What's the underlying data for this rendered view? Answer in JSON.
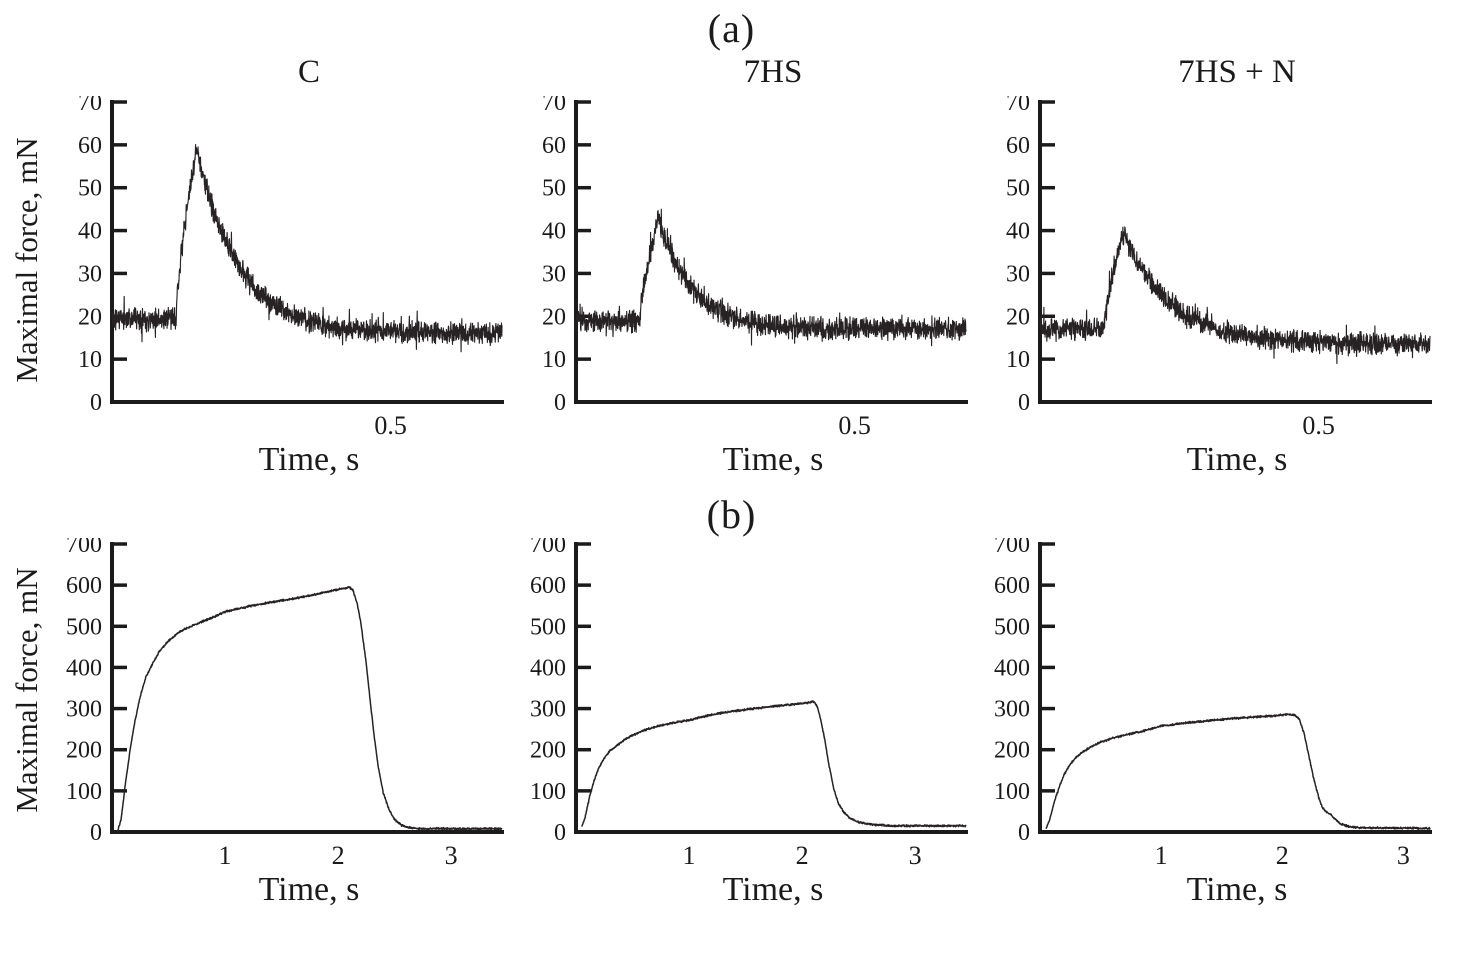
{
  "figure": {
    "section_a_label": "(a)",
    "section_b_label": "(b)",
    "y_axis_title": "Maximal force, mN",
    "x_axis_title": "Time, s"
  },
  "chart_data": [
    {
      "type": "line",
      "row": "a",
      "title": "C",
      "xlabel": "Time, s",
      "ylabel": "Maximal force, mN",
      "xlim": [
        0,
        0.7
      ],
      "ylim": [
        0,
        70
      ],
      "yticks": [
        0,
        10,
        20,
        30,
        40,
        50,
        60,
        70
      ],
      "ytick_labels": [
        "0",
        "10",
        "20",
        "30",
        "40",
        "50",
        "60",
        "70"
      ],
      "xticks": [
        0.5
      ],
      "xtick_labels": [
        "0.5"
      ],
      "grid": false,
      "legend": null,
      "line_color": "#272324",
      "axis_color": "#1b1b1b",
      "trace": {
        "kind": "twitch",
        "seed": 11,
        "samples": 1600,
        "baseline_start_mN": 19.5,
        "baseline_end_mN": 16,
        "stim_time_s": 0.115,
        "peak_time_s": 0.152,
        "peak_mN": 59,
        "decay_tau_s": 0.075,
        "noise_mN": 3.0
      }
    },
    {
      "type": "line",
      "row": "a",
      "title": "7HS",
      "xlabel": "Time, s",
      "ylabel": "Maximal force, mN",
      "xlim": [
        0,
        0.7
      ],
      "ylim": [
        0,
        70
      ],
      "yticks": [
        0,
        10,
        20,
        30,
        40,
        50,
        60,
        70
      ],
      "ytick_labels": [
        "0",
        "10",
        "20",
        "30",
        "40",
        "50",
        "60",
        "70"
      ],
      "xticks": [
        0.5
      ],
      "xtick_labels": [
        "0.5"
      ],
      "grid": false,
      "legend": null,
      "line_color": "#272324",
      "axis_color": "#1b1b1b",
      "trace": {
        "kind": "twitch",
        "seed": 23,
        "samples": 1600,
        "baseline_start_mN": 19,
        "baseline_end_mN": 17,
        "stim_time_s": 0.115,
        "peak_time_s": 0.148,
        "peak_mN": 42.5,
        "decay_tau_s": 0.062,
        "noise_mN": 3.0
      }
    },
    {
      "type": "line",
      "row": "a",
      "title": "7HS + N",
      "xlabel": "Time, s",
      "ylabel": "Maximal force, mN",
      "xlim": [
        0,
        0.7
      ],
      "ylim": [
        0,
        70
      ],
      "yticks": [
        0,
        10,
        20,
        30,
        40,
        50,
        60,
        70
      ],
      "ytick_labels": [
        "0",
        "10",
        "20",
        "30",
        "40",
        "50",
        "60",
        "70"
      ],
      "xticks": [
        0.5
      ],
      "xtick_labels": [
        "0.5"
      ],
      "grid": false,
      "legend": null,
      "line_color": "#272324",
      "axis_color": "#1b1b1b",
      "trace": {
        "kind": "twitch",
        "seed": 37,
        "samples": 1600,
        "baseline_start_mN": 17,
        "baseline_end_mN": 13.5,
        "stim_time_s": 0.115,
        "peak_time_s": 0.15,
        "peak_mN": 39.5,
        "decay_tau_s": 0.085,
        "noise_mN": 3.0
      }
    },
    {
      "type": "line",
      "row": "b",
      "title": "",
      "xlabel": "Time, s",
      "ylabel": "Maximal force, mN",
      "xlim": [
        0,
        3.45
      ],
      "ylim": [
        0,
        700
      ],
      "yticks": [
        0,
        100,
        200,
        300,
        400,
        500,
        600,
        700
      ],
      "ytick_labels": [
        "0",
        "100",
        "200",
        "300",
        "400",
        "500",
        "600",
        "700"
      ],
      "xticks": [
        1,
        2,
        3
      ],
      "xtick_labels": [
        "1",
        "2",
        "3"
      ],
      "grid": false,
      "legend": null,
      "line_color": "#272324",
      "axis_color": "#1b1b1b",
      "trace": {
        "kind": "tetanus",
        "seed": 51,
        "samples": 1300,
        "noise_mN": 2.8,
        "plateau_mN": 595,
        "keypoints": [
          [
            0.05,
            2
          ],
          [
            0.08,
            30
          ],
          [
            0.12,
            120
          ],
          [
            0.16,
            200
          ],
          [
            0.2,
            265
          ],
          [
            0.25,
            330
          ],
          [
            0.3,
            377
          ],
          [
            0.36,
            410
          ],
          [
            0.42,
            440
          ],
          [
            0.5,
            464
          ],
          [
            0.6,
            487
          ],
          [
            0.72,
            503
          ],
          [
            0.85,
            517
          ],
          [
            1.0,
            535
          ],
          [
            1.2,
            548
          ],
          [
            1.4,
            558
          ],
          [
            1.6,
            567
          ],
          [
            1.8,
            577
          ],
          [
            1.95,
            587
          ],
          [
            2.05,
            592
          ],
          [
            2.1,
            595
          ],
          [
            2.13,
            588
          ],
          [
            2.17,
            555
          ],
          [
            2.2,
            510
          ],
          [
            2.24,
            430
          ],
          [
            2.28,
            330
          ],
          [
            2.32,
            230
          ],
          [
            2.36,
            150
          ],
          [
            2.4,
            95
          ],
          [
            2.45,
            55
          ],
          [
            2.5,
            30
          ],
          [
            2.56,
            17
          ],
          [
            2.62,
            11
          ],
          [
            2.7,
            8
          ],
          [
            3.45,
            8
          ]
        ]
      }
    },
    {
      "type": "line",
      "row": "b",
      "title": "",
      "xlabel": "Time, s",
      "ylabel": "Maximal force, mN",
      "xlim": [
        0,
        3.45
      ],
      "ylim": [
        0,
        700
      ],
      "yticks": [
        0,
        100,
        200,
        300,
        400,
        500,
        600,
        700
      ],
      "ytick_labels": [
        "0",
        "100",
        "200",
        "300",
        "400",
        "500",
        "600",
        "700"
      ],
      "xticks": [
        1,
        2,
        3
      ],
      "xtick_labels": [
        "1",
        "2",
        "3"
      ],
      "grid": false,
      "legend": null,
      "line_color": "#272324",
      "axis_color": "#1b1b1b",
      "trace": {
        "kind": "tetanus",
        "seed": 67,
        "samples": 1300,
        "noise_mN": 2.8,
        "plateau_mN": 317,
        "keypoints": [
          [
            0.05,
            12
          ],
          [
            0.08,
            35
          ],
          [
            0.12,
            85
          ],
          [
            0.16,
            125
          ],
          [
            0.2,
            155
          ],
          [
            0.25,
            180
          ],
          [
            0.3,
            197
          ],
          [
            0.36,
            210
          ],
          [
            0.42,
            222
          ],
          [
            0.5,
            235
          ],
          [
            0.6,
            247
          ],
          [
            0.72,
            257
          ],
          [
            0.85,
            265
          ],
          [
            1.0,
            272
          ],
          [
            1.2,
            285
          ],
          [
            1.4,
            294
          ],
          [
            1.6,
            301
          ],
          [
            1.8,
            307
          ],
          [
            1.95,
            311
          ],
          [
            2.05,
            314
          ],
          [
            2.1,
            317
          ],
          [
            2.13,
            308
          ],
          [
            2.16,
            280
          ],
          [
            2.2,
            225
          ],
          [
            2.24,
            160
          ],
          [
            2.28,
            105
          ],
          [
            2.32,
            70
          ],
          [
            2.37,
            48
          ],
          [
            2.42,
            34
          ],
          [
            2.48,
            26
          ],
          [
            2.55,
            21
          ],
          [
            2.65,
            17
          ],
          [
            2.8,
            15
          ],
          [
            3.45,
            15
          ]
        ]
      }
    },
    {
      "type": "line",
      "row": "b",
      "title": "",
      "xlabel": "Time, s",
      "ylabel": "Maximal force, mN",
      "xlim": [
        0,
        3.22
      ],
      "ylim": [
        0,
        700
      ],
      "yticks": [
        0,
        100,
        200,
        300,
        400,
        500,
        600,
        700
      ],
      "ytick_labels": [
        "0",
        "100",
        "200",
        "300",
        "400",
        "500",
        "600",
        "700"
      ],
      "xticks": [
        1,
        2,
        3
      ],
      "xtick_labels": [
        "1",
        "2",
        "3"
      ],
      "grid": false,
      "legend": null,
      "line_color": "#272324",
      "axis_color": "#1b1b1b",
      "trace": {
        "kind": "tetanus",
        "seed": 83,
        "samples": 1300,
        "noise_mN": 2.8,
        "plateau_mN": 287,
        "keypoints": [
          [
            0.05,
            8
          ],
          [
            0.08,
            30
          ],
          [
            0.12,
            75
          ],
          [
            0.16,
            110
          ],
          [
            0.2,
            140
          ],
          [
            0.25,
            165
          ],
          [
            0.3,
            182
          ],
          [
            0.36,
            196
          ],
          [
            0.42,
            207
          ],
          [
            0.5,
            218
          ],
          [
            0.6,
            228
          ],
          [
            0.72,
            237
          ],
          [
            0.85,
            245
          ],
          [
            1.0,
            258
          ],
          [
            1.2,
            265
          ],
          [
            1.4,
            271
          ],
          [
            1.6,
            276
          ],
          [
            1.8,
            280
          ],
          [
            1.95,
            283
          ],
          [
            2.05,
            286
          ],
          [
            2.1,
            285
          ],
          [
            2.14,
            275
          ],
          [
            2.18,
            240
          ],
          [
            2.22,
            185
          ],
          [
            2.26,
            130
          ],
          [
            2.3,
            85
          ],
          [
            2.33,
            60
          ],
          [
            2.36,
            50
          ],
          [
            2.4,
            42
          ],
          [
            2.44,
            30
          ],
          [
            2.48,
            20
          ],
          [
            2.55,
            13
          ],
          [
            2.65,
            10
          ],
          [
            3.22,
            9
          ]
        ]
      }
    }
  ]
}
